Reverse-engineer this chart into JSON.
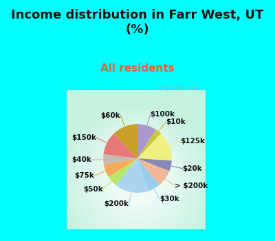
{
  "title": "Income distribution in Farr West, UT\n(%)",
  "subtitle": "All residents",
  "title_color": "#111111",
  "subtitle_color": "#dd6644",
  "bg_cyan": "#00ffff",
  "watermark": "  City-Data.com",
  "labels": [
    "$100k",
    "$10k",
    "$125k",
    "$20k",
    "> $200k",
    "$30k",
    "$200k",
    "$50k",
    "$75k",
    "$40k",
    "$150k",
    "$60k"
  ],
  "values": [
    9,
    3,
    14,
    5,
    8,
    6,
    16,
    5,
    6,
    5,
    11,
    12
  ],
  "colors": [
    "#aa99cc",
    "#c8c840",
    "#f0f080",
    "#8888bb",
    "#f0b898",
    "#99ccee",
    "#aad4f0",
    "#b8e868",
    "#f4a858",
    "#c8bab0",
    "#e87878",
    "#c8a028"
  ],
  "startangle": 90,
  "title_fontsize": 13,
  "subtitle_fontsize": 11,
  "label_fontsize": 7.5
}
